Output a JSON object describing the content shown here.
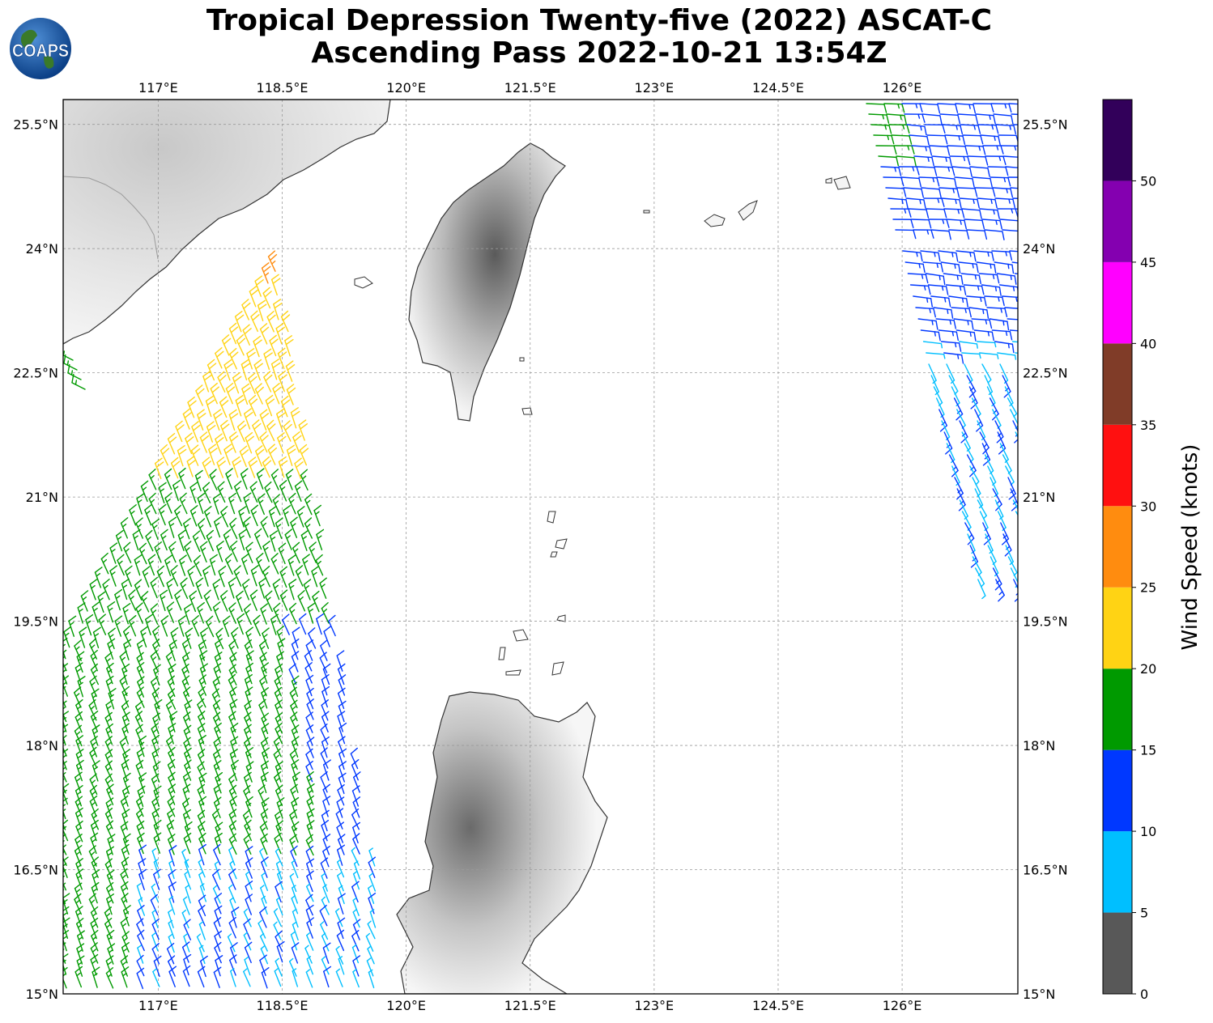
{
  "header": {
    "logo_text": "COAPS",
    "title_line1": "Tropical Depression Twenty-five (2022) ASCAT-C",
    "title_line2": "Ascending Pass 2022-10-21 13:54Z"
  },
  "map": {
    "lon_range": [
      115.85,
      127.4
    ],
    "lat_range": [
      15.0,
      25.8
    ],
    "lon_ticks": [
      {
        "value": 117.0,
        "label": "117°E"
      },
      {
        "value": 118.5,
        "label": "118.5°E"
      },
      {
        "value": 120.0,
        "label": "120°E"
      },
      {
        "value": 121.5,
        "label": "121.5°E"
      },
      {
        "value": 123.0,
        "label": "123°E"
      },
      {
        "value": 124.5,
        "label": "124.5°E"
      },
      {
        "value": 126.0,
        "label": "126°E"
      }
    ],
    "lat_ticks": [
      {
        "value": 25.5,
        "label": "25.5°N"
      },
      {
        "value": 24.0,
        "label": "24°N"
      },
      {
        "value": 22.5,
        "label": "22.5°N"
      },
      {
        "value": 21.0,
        "label": "21°N"
      },
      {
        "value": 19.5,
        "label": "19.5°N"
      },
      {
        "value": 18.0,
        "label": "18°N"
      },
      {
        "value": 16.5,
        "label": "16.5°N"
      },
      {
        "value": 15.0,
        "label": "15°N"
      }
    ],
    "grid": true,
    "land_features": [
      "China coast",
      "Taiwan",
      "Luzon",
      "Batanes islands",
      "Babuyan islands",
      "Yaeyama islands"
    ]
  },
  "colorbar": {
    "label": "Wind Speed (knots)",
    "bins": [
      {
        "min": 0,
        "max": 5,
        "color": "#585858"
      },
      {
        "min": 5,
        "max": 10,
        "color": "#00bfff"
      },
      {
        "min": 10,
        "max": 15,
        "color": "#0038ff"
      },
      {
        "min": 15,
        "max": 20,
        "color": "#009a00"
      },
      {
        "min": 20,
        "max": 25,
        "color": "#ffd314"
      },
      {
        "min": 25,
        "max": 30,
        "color": "#ff8c0f"
      },
      {
        "min": 30,
        "max": 35,
        "color": "#ff1010"
      },
      {
        "min": 35,
        "max": 40,
        "color": "#803c28"
      },
      {
        "min": 40,
        "max": 45,
        "color": "#ff00ff"
      },
      {
        "min": 45,
        "max": 50,
        "color": "#8400b0"
      },
      {
        "min": 50,
        "max": 55,
        "color": "#32005a"
      }
    ],
    "tick_labels": [
      "0",
      "5",
      "10",
      "15",
      "20",
      "25",
      "30",
      "35",
      "40",
      "45",
      "50"
    ]
  },
  "wind_swaths": {
    "west_swath": {
      "dominant_direction": "northeasterly",
      "speed_knots_regions": [
        {
          "area": "north (22-23.7N)",
          "speed": "20-25",
          "color": "#ffd314"
        },
        {
          "area": "northern tip (~23.7N 118.5E)",
          "speed": "25-30",
          "color": "#ff8c0f"
        },
        {
          "area": "central (16.5-21.5N)",
          "speed": "15-20",
          "color": "#009a00"
        },
        {
          "area": "east edge",
          "speed": "10-15",
          "color": "#0038ff"
        },
        {
          "area": "south-east (15-16.5N)",
          "speed": "5-10",
          "color": "#00bfff"
        }
      ]
    },
    "east_swath": {
      "speed_knots_regions": [
        {
          "area": "north (24.5-25.8N)",
          "speed": "10-20",
          "color": "#0038ff"
        },
        {
          "area": "south (19.7-23N)",
          "speed": "5-15",
          "color": "#00bfff"
        }
      ]
    }
  }
}
